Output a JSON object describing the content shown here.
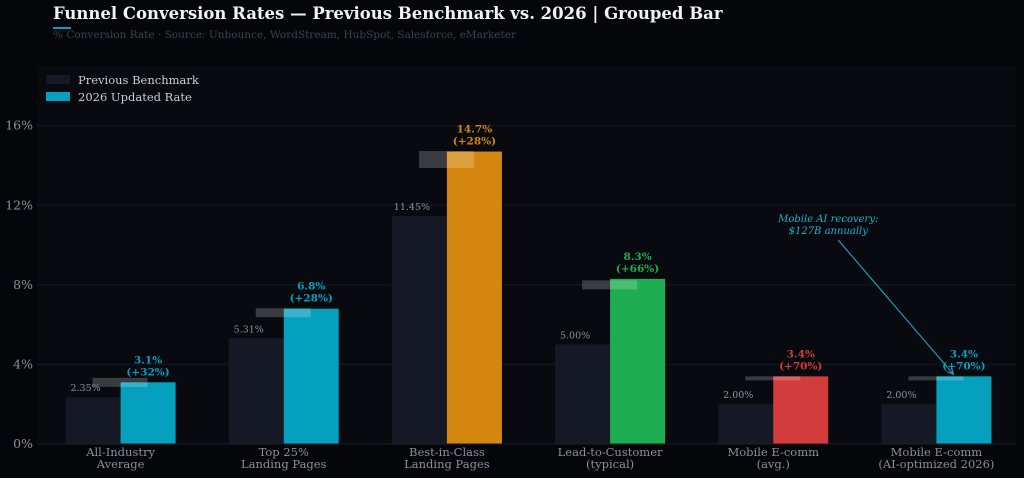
{
  "header": {
    "title": "Funnel Conversion Rates — Previous Benchmark vs. 2026  |  Grouped Bar",
    "subtitle": "% Conversion Rate  ·  Source: Unbounce, WordStream, HubSpot, Salesforce, eMarketer"
  },
  "chart_data": {
    "type": "bar",
    "title": "Funnel Conversion Rates — Previous Benchmark vs. 2026  |  Grouped Bar",
    "ylabel": "",
    "xlabel": "",
    "ylim": [
      0,
      19
    ],
    "yticks": [
      0,
      4,
      8,
      12,
      16
    ],
    "ytick_labels": [
      "0%",
      "4%",
      "8%",
      "12%",
      "16%"
    ],
    "grid": true,
    "legend_position": "top-left",
    "categories": [
      [
        "All-Industry",
        "Average"
      ],
      [
        "Top 25%",
        "Landing Pages"
      ],
      [
        "Best-in-Class",
        "Landing Pages"
      ],
      [
        "Lead-to-Customer",
        "(typical)"
      ],
      [
        "Mobile E-comm",
        "(avg.)"
      ],
      [
        "Mobile E-comm",
        "(AI-optimized 2026)"
      ]
    ],
    "series": [
      {
        "name": "Previous Benchmark",
        "color": "#141925",
        "values": [
          2.35,
          5.31,
          11.45,
          5.0,
          2.0,
          2.0
        ],
        "labels": [
          "2.35%",
          "5.31%",
          "11.45%",
          "5.00%",
          "2.00%",
          "2.00%"
        ]
      },
      {
        "name": "2026 Updated Rate",
        "color": "#06a0bf",
        "values": [
          3.1,
          6.8,
          14.7,
          8.3,
          3.4,
          3.4
        ],
        "colors": [
          "#06a0bf",
          "#06a0bf",
          "#d4870e",
          "#1fad52",
          "#d23c3c",
          "#06a0bf"
        ],
        "labels": [
          [
            "3.1%",
            "(+32%)"
          ],
          [
            "6.8%",
            "(+28%)"
          ],
          [
            "14.7%",
            "(+28%)"
          ],
          [
            "8.3%",
            "(+66%)"
          ],
          [
            "3.4%",
            "(+70%)"
          ],
          [
            "3.4%",
            "(+70%)"
          ]
        ]
      }
    ],
    "ghost_markers": [
      3.1,
      6.6,
      14.3,
      8.0,
      3.3,
      3.3
    ],
    "annotations": [
      {
        "lines": [
          "Mobile AI recovery:",
          "$127B annually"
        ],
        "color": "#18b4cf",
        "text_at": {
          "category": 4,
          "value": 10.6
        },
        "arrow_to": {
          "category": 5,
          "value": 3.4
        }
      }
    ]
  }
}
